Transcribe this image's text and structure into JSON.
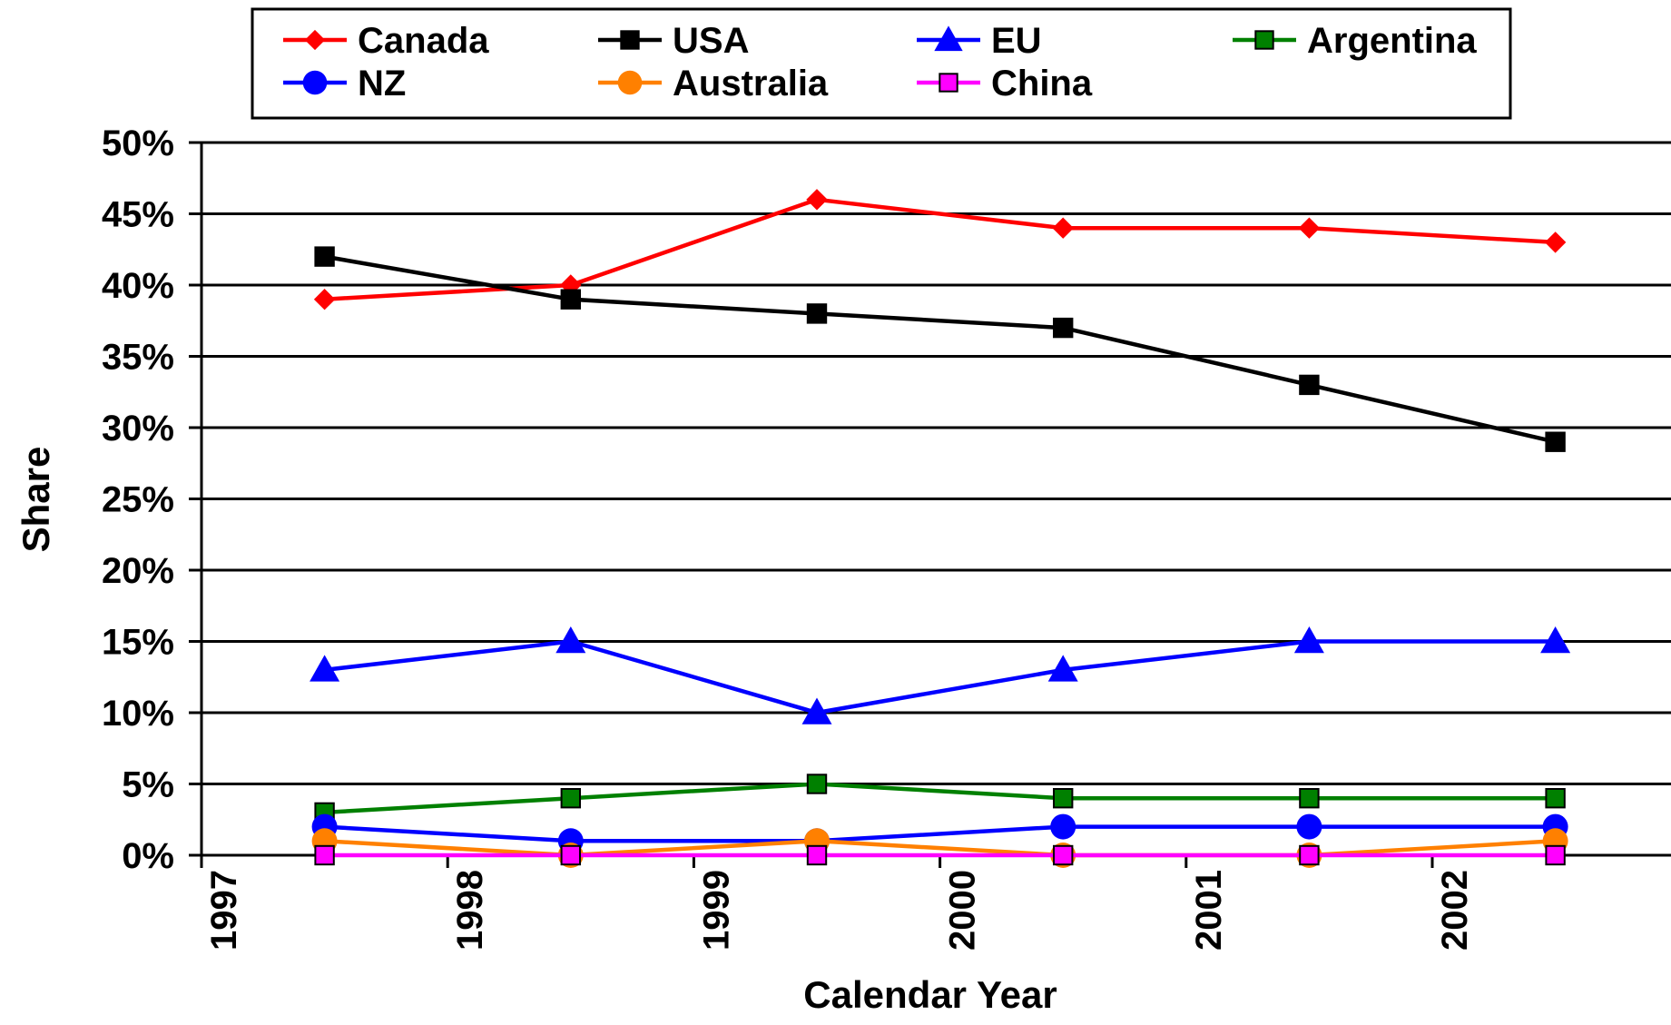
{
  "chart_data": {
    "type": "line",
    "xlabel": "Calendar Year",
    "ylabel": "Share",
    "x_ticks": [
      "1997",
      "1998",
      "1999",
      "2000",
      "2001",
      "2002"
    ],
    "y_ticks": [
      "0%",
      "5%",
      "10%",
      "15%",
      "20%",
      "25%",
      "30%",
      "35%",
      "40%",
      "45%",
      "50%"
    ],
    "ylim": [
      0,
      50
    ],
    "grid": "horizontal",
    "legend_position": "top",
    "series": [
      {
        "name": "Canada",
        "color": "#ff0000",
        "marker": "diamond",
        "x": [
          1997.5,
          1998.5,
          1999.5,
          2000.5,
          2001.5,
          2002.5
        ],
        "values": [
          39,
          40,
          46,
          44,
          44,
          43
        ]
      },
      {
        "name": "USA",
        "color": "#000000",
        "marker": "square",
        "x": [
          1997.5,
          1998.5,
          1999.5,
          2000.5,
          2001.5,
          2002.5
        ],
        "values": [
          42,
          39,
          38,
          37,
          33,
          29
        ]
      },
      {
        "name": "EU",
        "color": "#0000ff",
        "marker": "triangle",
        "x": [
          1997.5,
          1998.5,
          1999.5,
          2000.5,
          2001.5,
          2002.5
        ],
        "values": [
          13,
          15,
          10,
          13,
          15,
          15
        ]
      },
      {
        "name": "Argentina",
        "color": "#008000",
        "marker": "square",
        "x": [
          1997.5,
          1998.5,
          1999.5,
          2000.5,
          2001.5,
          2002.5
        ],
        "values": [
          3,
          4,
          5,
          4,
          4,
          4
        ]
      },
      {
        "name": "NZ",
        "color": "#0000ff",
        "marker": "circle",
        "x": [
          1997.5,
          1998.5,
          1999.5,
          2000.5,
          2001.5,
          2002.5
        ],
        "values": [
          2,
          1,
          1,
          2,
          2,
          2
        ]
      },
      {
        "name": "Australia",
        "color": "#ff8000",
        "marker": "circle",
        "x": [
          1997.5,
          1998.5,
          1999.5,
          2000.5,
          2001.5,
          2002.5
        ],
        "values": [
          1,
          0,
          1,
          0,
          0,
          1
        ]
      },
      {
        "name": "China",
        "color": "#ff00ff",
        "marker": "square",
        "x": [
          1997.5,
          1998.5,
          1999.5,
          2000.5,
          2001.5,
          2002.5
        ],
        "values": [
          0,
          0,
          0,
          0,
          0,
          0
        ]
      }
    ]
  }
}
